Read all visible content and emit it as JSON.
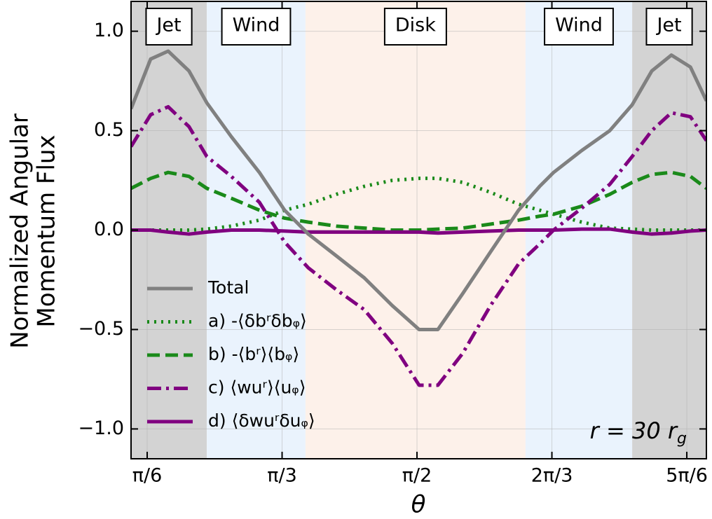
{
  "chart_data": {
    "type": "line",
    "xlabel": "θ",
    "ylabel": [
      "Normalized Angular",
      "Momentum Flux"
    ],
    "xlim": [
      0.461,
      2.694
    ],
    "ylim": [
      -1.15,
      1.15
    ],
    "xticks": [
      {
        "value": 0.5236,
        "label": "π/6"
      },
      {
        "value": 1.0472,
        "label": "π/3"
      },
      {
        "value": 1.5708,
        "label": "π/2"
      },
      {
        "value": 2.0944,
        "label": "2π/3"
      },
      {
        "value": 2.618,
        "label": "5π/6"
      }
    ],
    "yticks": [
      {
        "value": -1.0,
        "label": "−1.0"
      },
      {
        "value": -0.5,
        "label": "−0.5"
      },
      {
        "value": 0.0,
        "label": "0.0"
      },
      {
        "value": 0.5,
        "label": "0.5"
      },
      {
        "value": 1.0,
        "label": "1.0"
      }
    ],
    "grid": true,
    "legend": "lower left",
    "regions": [
      {
        "label": "Jet",
        "start": 0.461,
        "end": 0.755,
        "color": "#d3d3d3"
      },
      {
        "label": "Wind",
        "start": 0.755,
        "end": 1.138,
        "color": "#eaf3fd"
      },
      {
        "label": "Disk",
        "start": 1.138,
        "end": 1.992,
        "color": "#fdf1ea"
      },
      {
        "label": "Wind",
        "start": 1.992,
        "end": 2.406,
        "color": "#eaf3fd"
      },
      {
        "label": "Jet",
        "start": 2.406,
        "end": 2.694,
        "color": "#d3d3d3"
      }
    ],
    "annotation": {
      "text": "r = 30 r",
      "subscript": "g"
    },
    "x": [
      0.461,
      0.537,
      0.605,
      0.686,
      0.755,
      0.85,
      0.959,
      1.057,
      1.149,
      1.258,
      1.366,
      1.475,
      1.579,
      1.652,
      1.748,
      1.856,
      1.965,
      2.047,
      2.101,
      2.21,
      2.319,
      2.406,
      2.482,
      2.558,
      2.632,
      2.694
    ],
    "series": [
      {
        "name": "Total",
        "color": "#808080",
        "style": "solid",
        "values": [
          0.61,
          0.86,
          0.9,
          0.8,
          0.64,
          0.47,
          0.29,
          0.1,
          -0.02,
          -0.13,
          -0.24,
          -0.38,
          -0.5,
          -0.5,
          -0.32,
          -0.11,
          0.1,
          0.22,
          0.29,
          0.4,
          0.5,
          0.63,
          0.8,
          0.88,
          0.82,
          0.65
        ]
      },
      {
        "name": "a) -⟨δbʳδbᵩ⟩",
        "color": "#1a8a1a",
        "style": "dotted",
        "values": [
          0,
          0,
          0,
          0,
          0.005,
          0.02,
          0.05,
          0.1,
          0.13,
          0.18,
          0.22,
          0.25,
          0.26,
          0.26,
          0.24,
          0.19,
          0.13,
          0.1,
          0.08,
          0.04,
          0.01,
          0.005,
          0,
          0,
          0,
          0
        ]
      },
      {
        "name": "b) -⟨bʳ⟩⟨bᵩ⟩",
        "color": "#1a8a1a",
        "style": "dashed",
        "values": [
          0.21,
          0.26,
          0.29,
          0.27,
          0.21,
          0.16,
          0.1,
          0.06,
          0.04,
          0.02,
          0.01,
          0,
          0,
          0.005,
          0.01,
          0.03,
          0.05,
          0.07,
          0.08,
          0.12,
          0.18,
          0.24,
          0.28,
          0.29,
          0.27,
          0.21
        ]
      },
      {
        "name": "c) ⟨wuʳ⟩⟨uᵩ⟩",
        "color": "#800080",
        "style": "dashdot",
        "values": [
          0.42,
          0.58,
          0.62,
          0.52,
          0.37,
          0.27,
          0.14,
          -0.06,
          -0.19,
          -0.3,
          -0.4,
          -0.57,
          -0.78,
          -0.78,
          -0.62,
          -0.38,
          -0.17,
          -0.07,
          0,
          0.11,
          0.23,
          0.37,
          0.5,
          0.59,
          0.57,
          0.45
        ]
      },
      {
        "name": "d) ⟨δwuʳδuᵩ⟩",
        "color": "#800080",
        "style": "solid",
        "values": [
          0,
          0,
          -0.01,
          -0.02,
          -0.01,
          0,
          0,
          -0.005,
          -0.01,
          -0.01,
          -0.01,
          -0.01,
          -0.01,
          -0.015,
          -0.01,
          -0.005,
          0,
          0,
          0,
          0.005,
          0.005,
          -0.01,
          -0.02,
          -0.015,
          -0.005,
          0
        ]
      }
    ]
  }
}
